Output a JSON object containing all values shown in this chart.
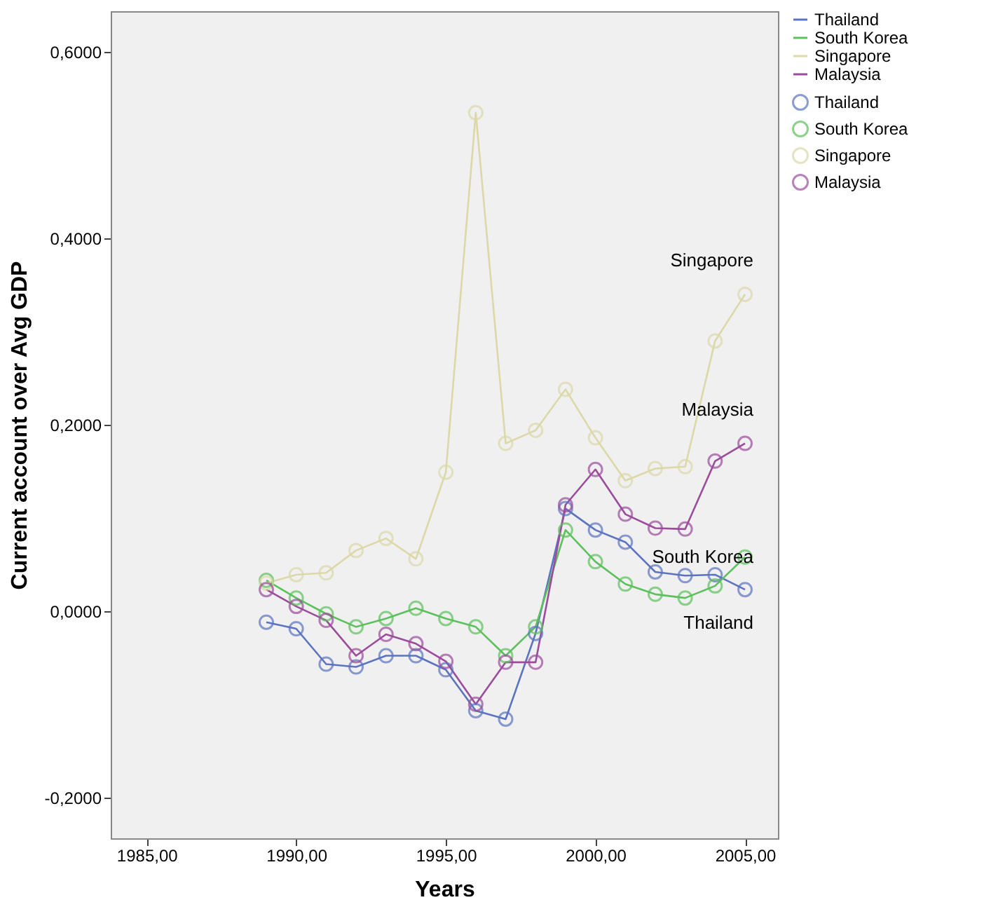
{
  "chart_data": {
    "type": "line",
    "xlabel": "Years",
    "ylabel": "Current account over Avg GDP",
    "x": [
      1989,
      1990,
      1991,
      1992,
      1993,
      1994,
      1995,
      1996,
      1997,
      1998,
      1999,
      2000,
      2001,
      2002,
      2003,
      2004,
      2005
    ],
    "series": [
      {
        "name": "Thailand",
        "color": "#5b73c0",
        "values": [
          -0.012,
          -0.019,
          -0.057,
          -0.06,
          -0.048,
          -0.048,
          -0.063,
          -0.107,
          -0.116,
          -0.024,
          0.11,
          0.087,
          0.074,
          0.042,
          0.038,
          0.039,
          0.023
        ]
      },
      {
        "name": "South Korea",
        "color": "#5cc05c",
        "values": [
          0.033,
          0.014,
          -0.003,
          -0.017,
          -0.008,
          0.003,
          -0.008,
          -0.017,
          -0.048,
          -0.017,
          0.087,
          0.053,
          0.029,
          0.018,
          0.014,
          0.027,
          0.058
        ]
      },
      {
        "name": "Singapore",
        "color": "#dcd8a8",
        "values": [
          0.03,
          0.039,
          0.041,
          0.065,
          0.078,
          0.056,
          0.149,
          0.535,
          0.18,
          0.194,
          0.238,
          0.186,
          0.14,
          0.153,
          0.155,
          0.29,
          0.34
        ]
      },
      {
        "name": "Malaysia",
        "color": "#9b4c9b",
        "values": [
          0.023,
          0.005,
          -0.01,
          -0.048,
          -0.025,
          -0.035,
          -0.054,
          -0.1,
          -0.055,
          -0.055,
          0.114,
          0.152,
          0.104,
          0.089,
          0.088,
          0.161,
          0.18
        ]
      }
    ],
    "xlim": [
      1983.8,
      2006.1
    ],
    "xticks": [
      {
        "value": 1985,
        "label": "1985,00"
      },
      {
        "value": 1990,
        "label": "1990,00"
      },
      {
        "value": 1995,
        "label": "1995,00"
      },
      {
        "value": 2000,
        "label": "2000,00"
      },
      {
        "value": 2005,
        "label": "2005,00"
      }
    ],
    "ylim": [
      -0.244,
      0.644
    ],
    "yticks": [
      {
        "value": -0.2,
        "label": "-0,2000"
      },
      {
        "value": 0,
        "label": "0,0000"
      },
      {
        "value": 0.2,
        "label": "0,2000"
      },
      {
        "value": 0.4,
        "label": "0,4000"
      },
      {
        "value": 0.6,
        "label": "0,6000"
      }
    ],
    "marker": "circle",
    "line_style": "solid",
    "grid": false,
    "legend": "top right"
  }
}
